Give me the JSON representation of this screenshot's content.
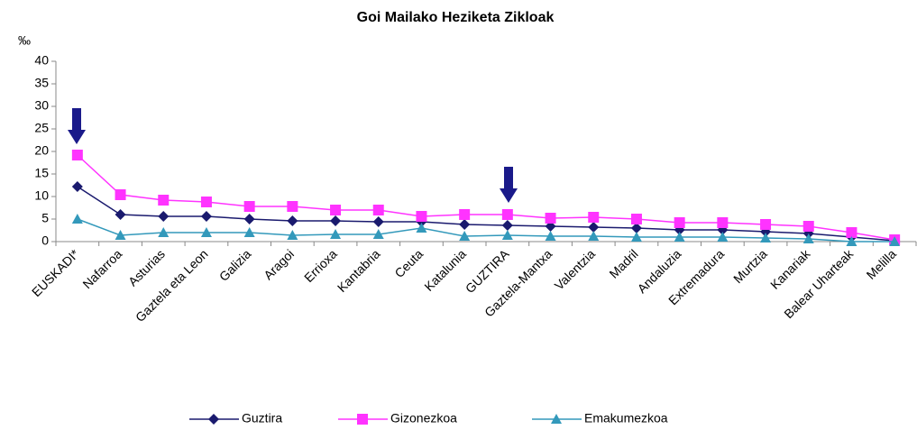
{
  "chart_data": {
    "type": "line",
    "title": "Goi Mailako Heziketa Zikloak",
    "y_label": "‰",
    "categories": [
      "EUSKADI*",
      "Nafarroa",
      "Asturias",
      "Gaztela eta Leon",
      "Galizia",
      "Aragoi",
      "Errioxa",
      "Kantabria",
      "Ceuta",
      "Katalunia",
      "GUZTIRA",
      "Gaztela-Mantxa",
      "Valentzia",
      "Madril",
      "Andaluzia",
      "Extremadura",
      "Murtzia",
      "Kanariak",
      "Balear Uharteak",
      "Melilla"
    ],
    "series": [
      {
        "name": "Guztira",
        "color": "#1a1a6e",
        "marker": "diamond",
        "values": [
          12.2,
          6.0,
          5.6,
          5.6,
          5.0,
          4.6,
          4.6,
          4.4,
          4.4,
          3.8,
          3.6,
          3.4,
          3.2,
          3.0,
          2.6,
          2.6,
          2.2,
          1.8,
          1.0,
          0.2
        ]
      },
      {
        "name": "Gizonezkoa",
        "color": "#ff33ff",
        "marker": "square",
        "values": [
          19.2,
          10.4,
          9.2,
          8.8,
          7.8,
          7.8,
          7.0,
          7.0,
          5.6,
          6.0,
          6.0,
          5.2,
          5.4,
          5.0,
          4.2,
          4.2,
          3.8,
          3.4,
          2.0,
          0.4
        ]
      },
      {
        "name": "Emakumezkoa",
        "color": "#3399bb",
        "marker": "triangle",
        "values": [
          5.0,
          1.4,
          2.0,
          2.0,
          2.0,
          1.4,
          1.6,
          1.6,
          3.0,
          1.2,
          1.4,
          1.2,
          1.2,
          1.0,
          1.0,
          1.0,
          0.8,
          0.6,
          0.0,
          0.0
        ]
      }
    ],
    "ylim": [
      0,
      40
    ],
    "yticks": [
      0,
      5,
      10,
      15,
      20,
      25,
      30,
      35,
      40
    ],
    "grid": false,
    "legend": "bottom"
  }
}
